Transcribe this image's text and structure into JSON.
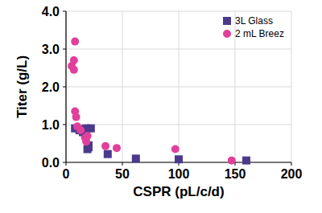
{
  "chart_data": {
    "type": "scatter",
    "x_label": "CSPR (pL/c/d)",
    "y_label": "Titer (g/L)",
    "xlim": [
      0,
      200
    ],
    "xticks": [
      0,
      50,
      100,
      150,
      200
    ],
    "ylim": [
      0,
      4
    ],
    "yticks": [
      {
        "value": 0,
        "label": "0.0"
      },
      {
        "value": 1,
        "label": "1.0"
      },
      {
        "value": 2,
        "label": "2.0"
      },
      {
        "value": 3,
        "label": "3.0"
      },
      {
        "value": 4,
        "label": "4.0"
      }
    ],
    "grid": true,
    "legend": "upper right",
    "series": [
      {
        "name": "3L Glass",
        "color": "#4b3a8c",
        "marker": "square",
        "x": [
          8,
          12,
          14,
          15,
          17,
          18,
          19,
          20,
          20,
          22,
          37,
          62,
          100,
          160
        ],
        "values": [
          0.9,
          0.85,
          0.88,
          0.8,
          0.75,
          0.9,
          0.35,
          0.4,
          0.45,
          0.9,
          0.22,
          0.1,
          0.08,
          0.05
        ]
      },
      {
        "name": "2 mL Breez",
        "color": "#e0409c",
        "marker": "circle",
        "x": [
          5,
          7,
          7,
          8,
          8,
          9,
          10,
          13,
          17,
          18,
          19,
          35,
          45,
          97,
          147
        ],
        "values": [
          2.55,
          2.45,
          2.7,
          3.2,
          1.35,
          1.2,
          0.95,
          0.85,
          0.65,
          0.55,
          0.7,
          0.43,
          0.38,
          0.35,
          0.05
        ]
      }
    ]
  }
}
